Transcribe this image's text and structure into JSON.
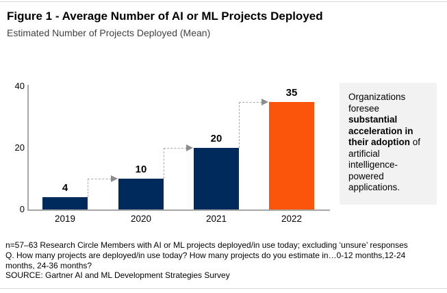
{
  "header": {
    "title": "Figure 1 - Average Number of AI or ML Projects Deployed",
    "subtitle": "Estimated Number of Projects Deployed (Mean)"
  },
  "chart_data": {
    "type": "bar",
    "categories": [
      "2019",
      "2020",
      "2021",
      "2022"
    ],
    "values": [
      4,
      10,
      20,
      35
    ],
    "title": "Figure 1 - Average Number of AI or ML Projects Deployed",
    "subtitle": "Estimated Number of Projects Deployed (Mean)",
    "xlabel": "",
    "ylabel": "",
    "ylim": [
      0,
      40
    ],
    "yticks": [
      0,
      20,
      40
    ],
    "grid": false,
    "legend": "none",
    "bar_colors": [
      "#002A5C",
      "#002A5C",
      "#002A5C",
      "#FA550A"
    ],
    "annotations": "dashed gray step arrows connecting the top of each bar to the top of the next bar"
  },
  "callout": {
    "pre": "Organizations foresee ",
    "bold": "substantial acceleration in their adoption",
    "post": " of artificial intelligence-powered applications.",
    "background": "#F2F2F2"
  },
  "footnotes": {
    "lines": [
      "n=57–63 Research Circle Members with AI or ML projects deployed/in use today; excluding ‘unsure’ responses",
      "Q. How many projects are deployed/in use today? How many projects do you estimate in…0-12 months,12-24",
      "months, 24-36 months?",
      "SOURCE: Gartner AI and ML Development Strategies Survey"
    ]
  },
  "colors": {
    "bar_navy": "#002A5C",
    "bar_orange": "#FA550A",
    "axis_gray": "#A6A6A6",
    "arrow_gray": "#8C8C8C",
    "border_gray": "#D9D9D9",
    "callout_bg": "#F2F2F2"
  }
}
